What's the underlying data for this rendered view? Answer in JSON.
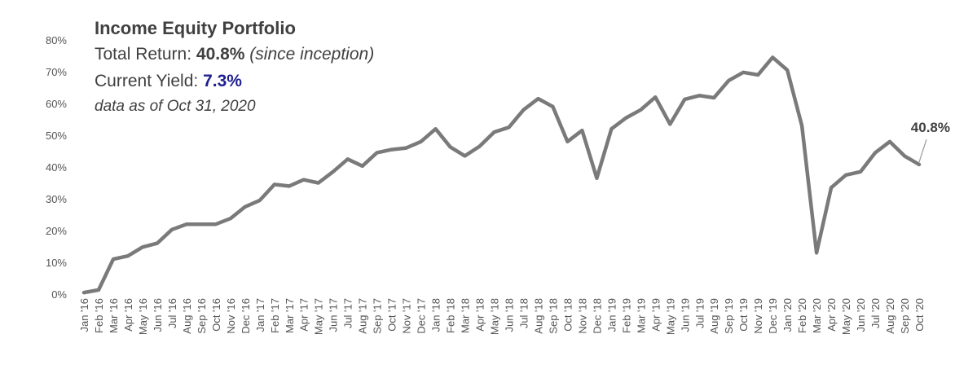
{
  "header": {
    "title": "Income Equity Portfolio",
    "total_return_label": "Total Return: ",
    "total_return_value": "40.8%",
    "total_return_note": "(since inception)",
    "current_yield_label": "Current Yield: ",
    "current_yield_value": "7.3%",
    "as_of": "data as of Oct 31, 2020"
  },
  "colors": {
    "line": "#7a7a7a",
    "text": "#404040",
    "yield": "#1f1f8f"
  },
  "chart_data": {
    "type": "line",
    "ylim": [
      0,
      80
    ],
    "yticks": [
      "0%",
      "10%",
      "20%",
      "30%",
      "40%",
      "50%",
      "60%",
      "70%",
      "80%"
    ],
    "grid": false,
    "end_label": "40.8%",
    "categories": [
      "Jan '16",
      "Feb '16",
      "Mar '16",
      "Apr '16",
      "May '16",
      "Jun '16",
      "Jul '16",
      "Aug '16",
      "Sep '16",
      "Oct '16",
      "Nov '16",
      "Dec '16",
      "Jan '17",
      "Feb '17",
      "Mar '17",
      "Apr '17",
      "May '17",
      "Jun '17",
      "Jul '17",
      "Aug '17",
      "Sep '17",
      "Oct '17",
      "Nov '17",
      "Dec '17",
      "Jan '18",
      "Feb '18",
      "Mar '18",
      "Apr '18",
      "May '18",
      "Jun '18",
      "Jul '18",
      "Aug '18",
      "Sep '18",
      "Oct '18",
      "Nov '18",
      "Dec '18",
      "Jan '19",
      "Feb '19",
      "Mar '19",
      "Apr '19",
      "May '19",
      "Jun '19",
      "Jul '19",
      "Aug '19",
      "Sep '19",
      "Oct '19",
      "Nov '19",
      "Dec '19",
      "Jan '20",
      "Feb '20",
      "Mar '20",
      "Apr '20",
      "May '20",
      "Jun '20",
      "Jul '20",
      "Aug '20",
      "Sep '20",
      "Oct '20"
    ],
    "values": [
      0.5,
      1.3,
      11.0,
      12.0,
      14.8,
      16.0,
      20.3,
      22.0,
      22.0,
      22.0,
      23.8,
      27.5,
      29.5,
      34.5,
      34.0,
      36.0,
      35.0,
      38.5,
      42.5,
      40.3,
      44.5,
      45.5,
      46.0,
      48.0,
      52.0,
      46.3,
      43.5,
      46.5,
      51.0,
      52.5,
      58.0,
      61.5,
      59.0,
      48.0,
      51.5,
      36.5,
      52.0,
      55.5,
      58.0,
      62.0,
      53.5,
      61.3,
      62.5,
      61.8,
      67.2,
      69.8,
      69.0,
      74.5,
      70.5,
      53.0,
      13.0,
      33.5,
      37.5,
      38.5,
      44.5,
      48.0,
      43.5,
      40.8
    ]
  }
}
